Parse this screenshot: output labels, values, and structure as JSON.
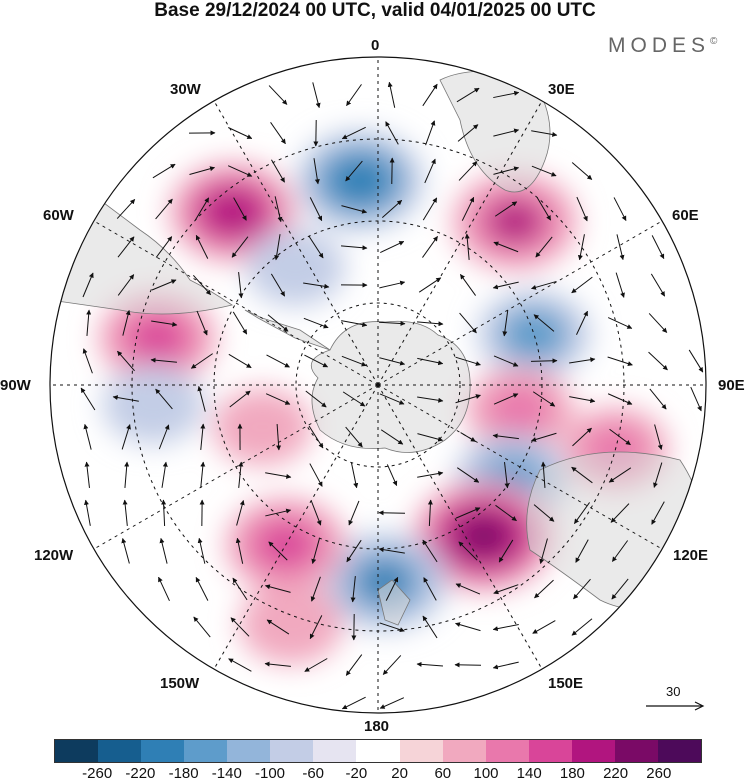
{
  "title": "Base 29/12/2024 00 UTC, valid 04/01/2025 00 UTC",
  "brand": "MODES",
  "brand_mark": "©",
  "longitude_labels": {
    "lon_0": "0",
    "lon_30e": "30E",
    "lon_60e": "60E",
    "lon_90e": "90E",
    "lon_120e": "120E",
    "lon_150e": "150E",
    "lon_180": "180",
    "lon_150w": "150W",
    "lon_120w": "120W",
    "lon_90w": "90W",
    "lon_60w": "60W",
    "lon_30w": "30W"
  },
  "vector_scale": "30",
  "colorbar": {
    "ticks": [
      "-260",
      "-220",
      "-180",
      "-140",
      "-100",
      "-60",
      "-20",
      "20",
      "60",
      "100",
      "140",
      "180",
      "220",
      "260"
    ],
    "colors": [
      "#0d3b5e",
      "#165e8f",
      "#2f7fb5",
      "#5e9ccb",
      "#93b5da",
      "#c3cde6",
      "#e6e4f1",
      "#ffffff",
      "#f6d4d8",
      "#f1a9bf",
      "#e978ac",
      "#d94599",
      "#b1157f",
      "#7a0a66",
      "#4d0a5a"
    ]
  },
  "anomalies": [
    {
      "lon": -5,
      "lat": -40,
      "value": -200
    },
    {
      "lon": 40,
      "lat": -38,
      "value": 190
    },
    {
      "lon": -40,
      "lat": -35,
      "value": 200
    },
    {
      "lon": -78,
      "lat": -35,
      "value": 160
    },
    {
      "lon": 72,
      "lat": -50,
      "value": -140
    },
    {
      "lon": 100,
      "lat": -55,
      "value": 120
    },
    {
      "lon": 125,
      "lat": -50,
      "value": -150
    },
    {
      "lon": 145,
      "lat": -45,
      "value": 260
    },
    {
      "lon": 178,
      "lat": -42,
      "value": -190
    },
    {
      "lon": -150,
      "lat": -45,
      "value": 170
    },
    {
      "lon": -160,
      "lat": -28,
      "value": 100
    },
    {
      "lon": -110,
      "lat": -60,
      "value": 80
    },
    {
      "lon": -95,
      "lat": -35,
      "value": -90
    },
    {
      "lon": 105,
      "lat": -30,
      "value": 110
    },
    {
      "lon": -35,
      "lat": -55,
      "value": -80
    }
  ]
}
